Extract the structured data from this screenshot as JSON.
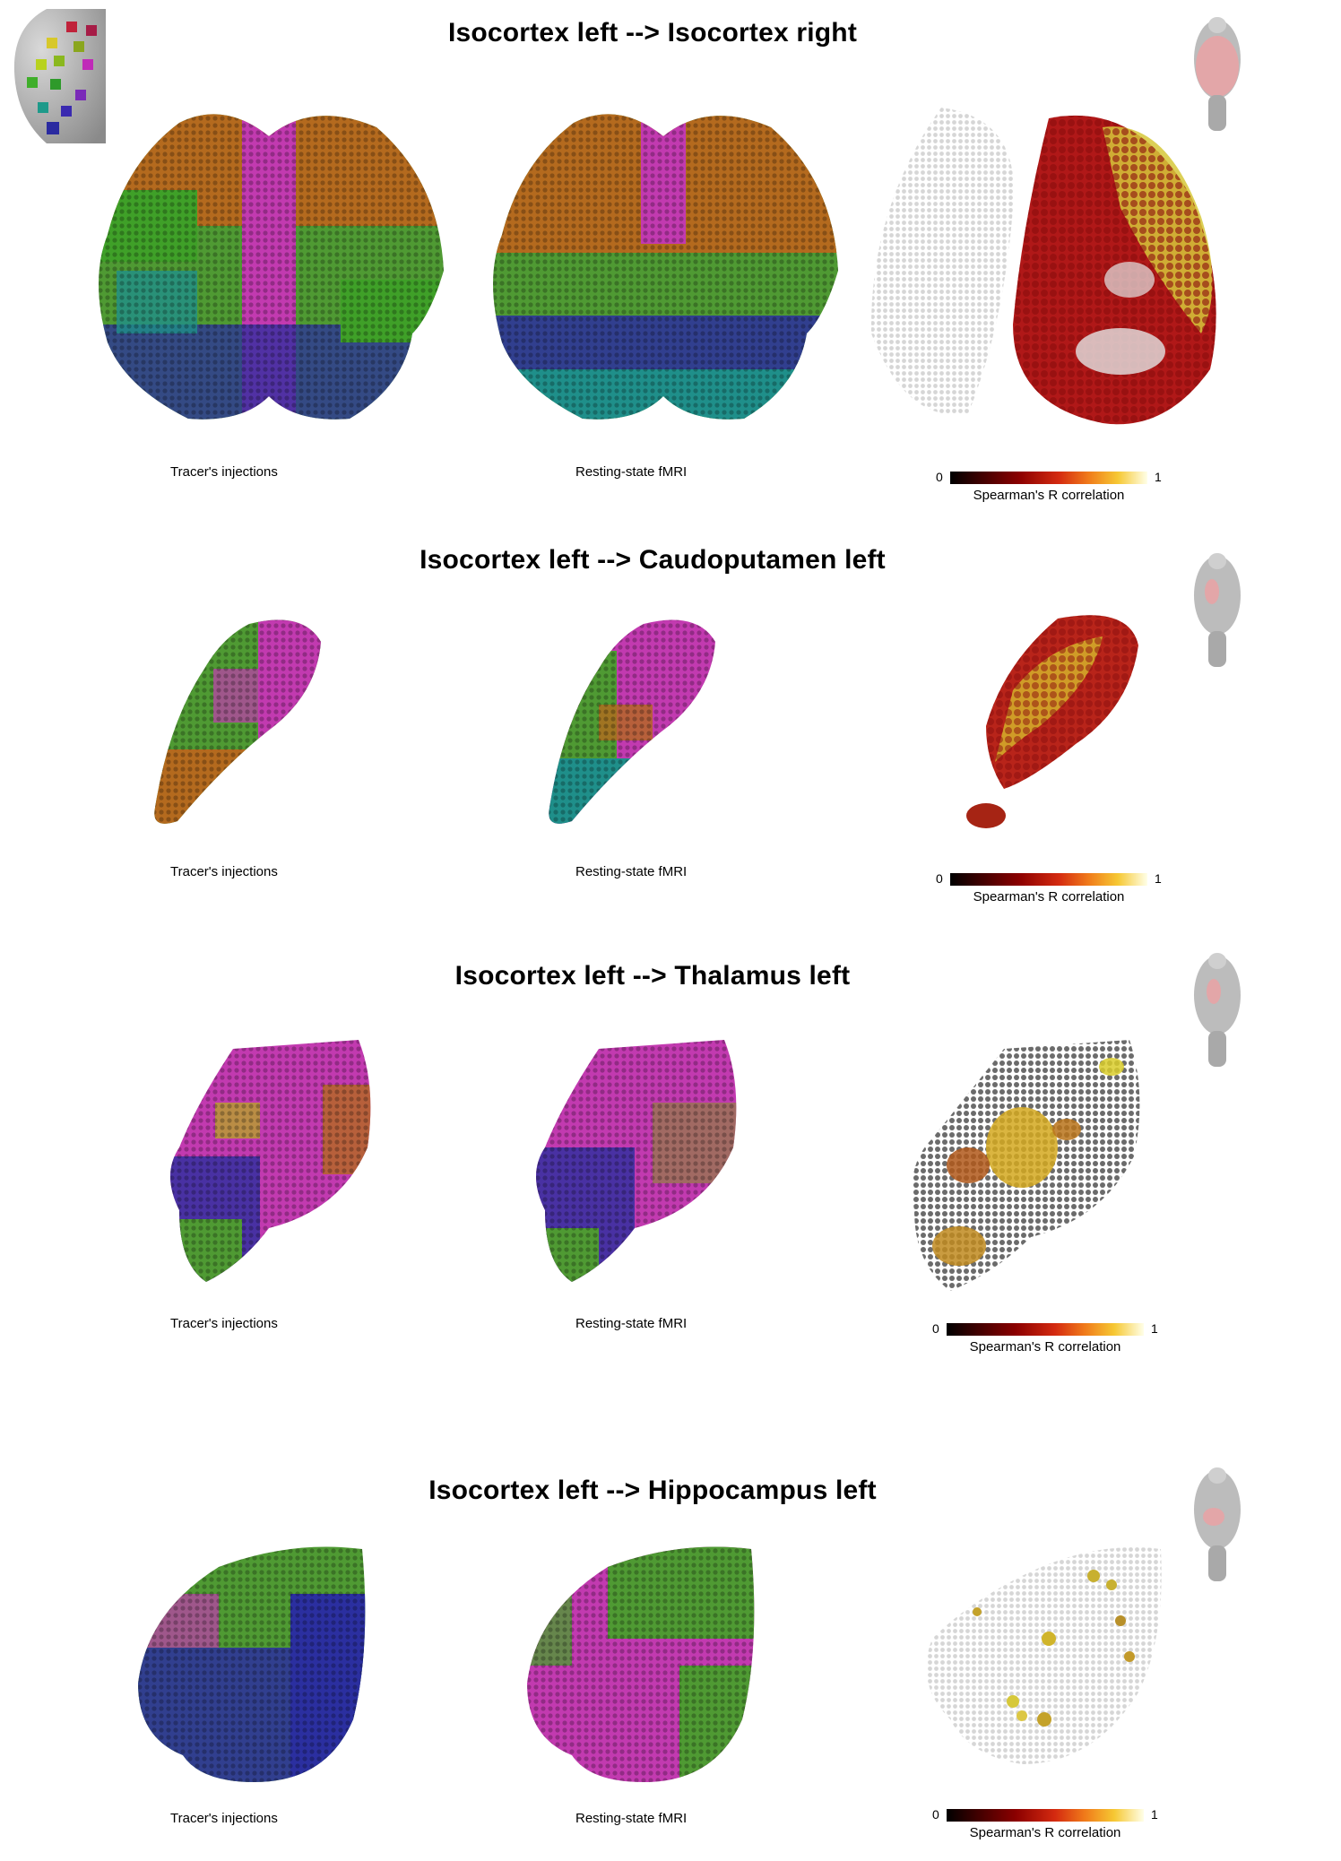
{
  "figure": {
    "panels": [
      {
        "title": "Isocortex left --> Isocortex right",
        "caption_tracer": "Tracer's injections",
        "caption_fmri": "Resting-state fMRI",
        "colorbar": {
          "min": "0",
          "max": "1",
          "label": "Spearman's R correlation"
        }
      },
      {
        "title": "Isocortex left --> Caudoputamen left",
        "caption_tracer": "Tracer's injections",
        "caption_fmri": "Resting-state fMRI",
        "colorbar": {
          "min": "0",
          "max": "1",
          "label": "Spearman's R correlation"
        }
      },
      {
        "title": "Isocortex left --> Thalamus left",
        "caption_tracer": "Tracer's injections",
        "caption_fmri": "Resting-state fMRI",
        "colorbar": {
          "min": "0",
          "max": "1",
          "label": "Spearman's R correlation"
        }
      },
      {
        "title": "Isocortex left --> Hippocampus left",
        "caption_tracer": "Tracer's injections",
        "caption_fmri": "Resting-state fMRI",
        "colorbar": {
          "min": "0",
          "max": "1",
          "label": "Spearman's R correlation"
        }
      }
    ],
    "colors": {
      "magenta": "#c23ab0",
      "green": "#4f9a33",
      "orange": "#b46a1e",
      "blue": "#2b2fa0",
      "teal": "#1f8f8a",
      "corr_red": "#9b1010",
      "corr_yellow": "#e7d43a",
      "grey": "#cfcfcf"
    }
  }
}
